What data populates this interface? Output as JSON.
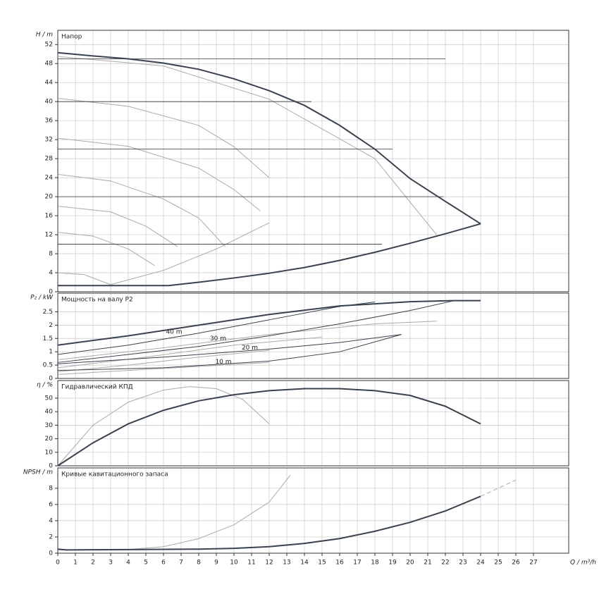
{
  "chart_data": [
    {
      "type": "line",
      "title": "Напор",
      "ylabel": "H / m",
      "ylim": [
        0,
        55
      ],
      "yticks": [
        0,
        4,
        8,
        12,
        16,
        20,
        24,
        28,
        32,
        36,
        40,
        44,
        48,
        52
      ],
      "series": [
        {
          "color": "#aaaaaa",
          "width": 1,
          "x": [
            0,
            4,
            8,
            10,
            12
          ],
          "values": [
            40.7,
            39,
            35,
            30.5,
            24
          ]
        },
        {
          "color": "#aaaaaa",
          "width": 1,
          "x": [
            0,
            4,
            8,
            10,
            11.5
          ],
          "values": [
            32.3,
            30.6,
            26,
            21.5,
            17
          ]
        },
        {
          "color": "#aaaaaa",
          "width": 1,
          "x": [
            0,
            3,
            6,
            8,
            9.5
          ],
          "values": [
            24.7,
            23.3,
            19.5,
            15.5,
            9.5
          ]
        },
        {
          "color": "#aaaaaa",
          "width": 1,
          "x": [
            0,
            3,
            5,
            6.8
          ],
          "values": [
            18,
            16.8,
            13.8,
            9.5
          ]
        },
        {
          "color": "#aaaaaa",
          "width": 1,
          "x": [
            0,
            2,
            4,
            5.5
          ],
          "values": [
            12.5,
            11.7,
            9,
            5.5
          ]
        },
        {
          "color": "#aaaaaa",
          "width": 1,
          "x": [
            0,
            1.5,
            3
          ],
          "values": [
            4,
            3.6,
            1.5
          ]
        },
        {
          "color": "#aaaaaa",
          "width": 1,
          "x": [
            0,
            6,
            12,
            18,
            21.5
          ],
          "values": [
            49.5,
            47.5,
            40.5,
            28,
            12
          ]
        },
        {
          "color": "#aaaaaa",
          "width": 1,
          "x": [
            3,
            6,
            9,
            12
          ],
          "values": [
            1.5,
            4.5,
            9,
            14.5
          ]
        },
        {
          "color": "#333333",
          "width": 0.8,
          "x": [
            0,
            22
          ],
          "values": [
            49,
            49
          ]
        },
        {
          "color": "#333333",
          "width": 0.8,
          "x": [
            0,
            14.4
          ],
          "values": [
            40,
            40
          ]
        },
        {
          "color": "#333333",
          "width": 0.8,
          "x": [
            0,
            19
          ],
          "values": [
            30,
            30
          ]
        },
        {
          "color": "#333333",
          "width": 0.8,
          "x": [
            0,
            21.9
          ],
          "values": [
            20,
            20
          ]
        },
        {
          "color": "#333333",
          "width": 0.8,
          "x": [
            0,
            18.4
          ],
          "values": [
            10,
            10
          ]
        },
        {
          "color": "#3a4250",
          "width": 2,
          "x": [
            0,
            2,
            4,
            6,
            8,
            10,
            12,
            14,
            16,
            18,
            20,
            22,
            24
          ],
          "values": [
            50.3,
            49.6,
            49,
            48.1,
            46.8,
            44.8,
            42.3,
            39.2,
            35,
            30,
            23.8,
            19,
            14.3
          ]
        },
        {
          "color": "#3a4250",
          "width": 2,
          "x": [
            0,
            6.3,
            8,
            10,
            12,
            14,
            16,
            18,
            20,
            22,
            24
          ],
          "values": [
            1.3,
            1.3,
            2,
            2.9,
            3.9,
            5.1,
            6.6,
            8.3,
            10.2,
            12.2,
            14.3
          ]
        }
      ]
    },
    {
      "type": "line",
      "title": "Мощность на валу P2",
      "ylabel": "P₂ / kW",
      "ylim": [
        0,
        3.2
      ],
      "yticks": [
        0,
        0.5,
        1,
        1.5,
        2,
        2.5
      ],
      "annotations": [
        "40 m",
        "30 m",
        "20 m",
        "10 m"
      ],
      "series": [
        {
          "color": "#aaaaaa",
          "width": 1,
          "x": [
            0,
            6,
            12,
            18,
            21.5
          ],
          "values": [
            0.7,
            1.15,
            1.65,
            2.05,
            2.15
          ]
        },
        {
          "color": "#aaaaaa",
          "width": 1,
          "x": [
            0,
            5,
            10,
            15
          ],
          "values": [
            0.4,
            0.8,
            1.25,
            1.55
          ]
        },
        {
          "color": "#aaaaaa",
          "width": 1,
          "x": [
            0,
            4,
            8,
            12
          ],
          "values": [
            0.25,
            0.5,
            0.8,
            1.05
          ]
        },
        {
          "color": "#aaaaaa",
          "width": 1,
          "x": [
            0,
            4,
            8,
            12
          ],
          "values": [
            0.15,
            0.3,
            0.45,
            0.6
          ]
        },
        {
          "color": "#3a4250",
          "width": 1,
          "x": [
            0,
            4,
            8,
            12,
            16,
            18
          ],
          "values": [
            0.9,
            1.25,
            1.7,
            2.2,
            2.7,
            2.87
          ]
        },
        {
          "color": "#3a4250",
          "width": 1,
          "x": [
            0,
            4,
            8,
            12,
            16,
            20,
            22.5
          ],
          "values": [
            0.6,
            0.9,
            1.2,
            1.6,
            2.05,
            2.55,
            2.92
          ]
        },
        {
          "color": "#3a4250",
          "width": 1,
          "x": [
            0,
            6,
            12,
            16,
            19.5
          ],
          "values": [
            0.55,
            0.8,
            1.1,
            1.35,
            1.65
          ]
        },
        {
          "color": "#3a4250",
          "width": 1,
          "x": [
            0,
            6,
            12,
            16,
            19.5
          ],
          "values": [
            0.3,
            0.4,
            0.65,
            1,
            1.65
          ]
        },
        {
          "color": "#3a4250",
          "width": 2,
          "x": [
            0,
            4,
            8,
            12,
            16,
            20,
            22.4,
            24
          ],
          "values": [
            1.25,
            1.6,
            2,
            2.4,
            2.72,
            2.88,
            2.92,
            2.92
          ]
        }
      ]
    },
    {
      "type": "line",
      "title": "Гидравлический КПД",
      "ylabel": "η / %",
      "ylim": [
        0,
        63
      ],
      "yticks": [
        0,
        10,
        20,
        30,
        40,
        50
      ],
      "series": [
        {
          "color": "#aaaaaa",
          "width": 1,
          "x": [
            0,
            2,
            4,
            6,
            7.5,
            9,
            10.5,
            12
          ],
          "values": [
            0,
            30,
            47,
            56,
            58.5,
            57,
            49,
            31
          ]
        },
        {
          "color": "#3a4250",
          "width": 2,
          "x": [
            0,
            2,
            4,
            6,
            8,
            10,
            12,
            14,
            16,
            18,
            20,
            22,
            24
          ],
          "values": [
            0,
            17,
            31,
            41,
            48,
            52.5,
            55.5,
            57,
            57,
            55.5,
            52,
            44,
            31
          ]
        }
      ]
    },
    {
      "type": "line",
      "title": "Кривые кавитационного запаса",
      "ylabel": "NPSH / m",
      "ylim": [
        0,
        10.5
      ],
      "yticks": [
        0,
        2,
        4,
        6,
        8
      ],
      "xlabel": "Q / m³/h",
      "xlim": [
        0,
        29
      ],
      "xticks": [
        0,
        1,
        2,
        3,
        4,
        5,
        6,
        7,
        8,
        9,
        10,
        11,
        12,
        13,
        14,
        15,
        16,
        17,
        18,
        19,
        20,
        21,
        22,
        23,
        24,
        25,
        26,
        27
      ],
      "series": [
        {
          "color": "#aaaaaa",
          "width": 1,
          "x": [
            0,
            4,
            6,
            8,
            10,
            12,
            13.2
          ],
          "values": [
            0.4,
            0.45,
            0.8,
            1.8,
            3.5,
            6.3,
            9.6
          ]
        },
        {
          "color": "#aaaaaa",
          "width": 1,
          "dash": true,
          "x": [
            24,
            26
          ],
          "values": [
            7,
            9
          ]
        },
        {
          "color": "#3a4250",
          "width": 2,
          "x": [
            0,
            0.5,
            4,
            8,
            10,
            12,
            14,
            16,
            18,
            20,
            22,
            24
          ],
          "values": [
            0.5,
            0.4,
            0.45,
            0.5,
            0.6,
            0.8,
            1.2,
            1.8,
            2.7,
            3.8,
            5.2,
            7
          ]
        }
      ]
    }
  ]
}
